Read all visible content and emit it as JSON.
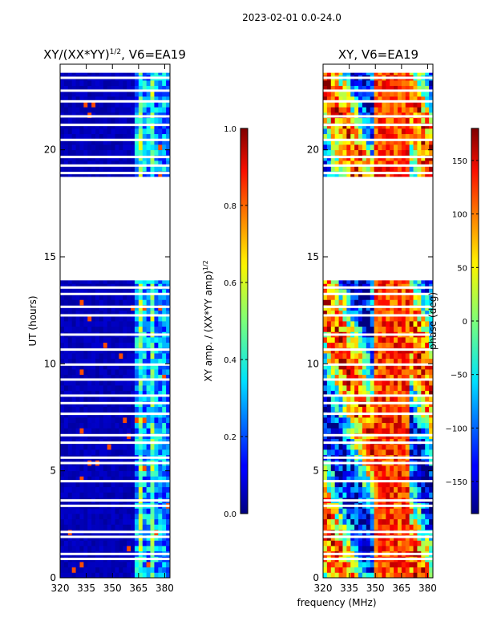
{
  "chart_data": [
    {
      "type": "heatmap",
      "suptitle": "2023-02-01 0.0-24.0",
      "title": "XY/(XX*YY)1/2, V6=EA19",
      "title_parts": {
        "main": "XY/(XX*YY)",
        "sup": "1/2",
        "rest": ", V6=EA19"
      },
      "xlabel": "",
      "ylabel": "UT (hours)",
      "xlim": [
        320,
        383
      ],
      "ylim": [
        0,
        24
      ],
      "x_ticks": [
        "320",
        "335",
        "350",
        "365",
        "380"
      ],
      "x_tick_values": [
        320,
        335,
        350,
        365,
        380
      ],
      "y_ticks": [
        "0",
        "5",
        "10",
        "15",
        "20"
      ],
      "y_tick_values": [
        0,
        5,
        10,
        15,
        20
      ],
      "data_gap_hours": [
        13.9,
        18.6
      ],
      "colorbar": {
        "label_main": "XY amp. / (XX*YY amp)",
        "label_sup": "1/2",
        "range": [
          0.0,
          1.0
        ],
        "ticks": [
          "0.0",
          "0.2",
          "0.4",
          "0.6",
          "0.8",
          "1.0"
        ],
        "tick_values": [
          0.0,
          0.2,
          0.4,
          0.6,
          0.8,
          1.0
        ]
      }
    },
    {
      "type": "heatmap",
      "title": "XY, V6=EA19",
      "xlabel": "frequency (MHz)",
      "ylabel": "",
      "xlim": [
        320,
        383
      ],
      "ylim": [
        0,
        24
      ],
      "x_ticks": [
        "320",
        "335",
        "350",
        "365",
        "380"
      ],
      "x_tick_values": [
        320,
        335,
        350,
        365,
        380
      ],
      "y_ticks": [
        "0",
        "5",
        "10",
        "15",
        "20"
      ],
      "y_tick_values": [
        0,
        5,
        10,
        15,
        20
      ],
      "data_gap_hours": [
        13.9,
        18.6
      ],
      "colorbar": {
        "label": "phase (deg)",
        "range": [
          -180,
          180
        ],
        "ticks": [
          "−150",
          "−100",
          "−50",
          "0",
          "50",
          "100",
          "150"
        ],
        "tick_values": [
          -150,
          -100,
          -50,
          0,
          50,
          100,
          150
        ]
      }
    }
  ]
}
